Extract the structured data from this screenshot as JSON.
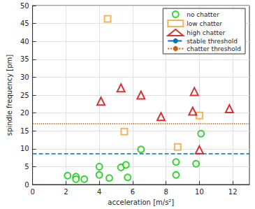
{
  "chart_data": {
    "type": "scatter",
    "x_label": "acceleration [m/s²]",
    "y_label": "spindle frequency [pm]",
    "xlim": [
      0,
      13
    ],
    "xticks": [
      0,
      2,
      4,
      6,
      8,
      10,
      12
    ],
    "ylim": [
      0,
      50
    ],
    "yticks": [
      0,
      5,
      10,
      15,
      20,
      25,
      30,
      35,
      40,
      45,
      50
    ],
    "grid": true,
    "legend": "top-right",
    "series": [
      {
        "name": "no chatter",
        "type": "scatter",
        "marker": "circle",
        "color": "#00cc00",
        "x": [
          2.1,
          2.6,
          2.6,
          3.1,
          4.0,
          4.0,
          4.6,
          5.3,
          5.6,
          5.7,
          6.5,
          8.6,
          8.6,
          9.8,
          10.1
        ],
        "values": [
          2.5,
          2.2,
          1.5,
          1.5,
          5.0,
          2.7,
          1.8,
          4.8,
          5.5,
          2.0,
          9.8,
          6.3,
          2.7,
          5.8,
          14.2
        ]
      },
      {
        "name": "low chatter",
        "type": "scatter",
        "marker": "square",
        "color": "#f0a030",
        "x": [
          4.5,
          5.5,
          8.7,
          10.0
        ],
        "values": [
          46.3,
          14.8,
          10.5,
          19.3
        ]
      },
      {
        "name": "high chatter",
        "type": "scatter",
        "marker": "triangle",
        "color": "#cc0000",
        "x": [
          4.1,
          5.3,
          6.5,
          7.7,
          9.6,
          9.7,
          10.0,
          11.8
        ],
        "values": [
          23.3,
          27.0,
          25.0,
          19.0,
          20.5,
          26.0,
          9.7,
          21.2
        ]
      },
      {
        "name": "stable threshold",
        "type": "line",
        "line_style": "dashed",
        "color": "#0072bd",
        "x": [
          0,
          13
        ],
        "values": [
          8.6,
          8.6
        ]
      },
      {
        "name": "chatter threshold",
        "type": "line",
        "line_style": "dotted",
        "color": "#c0601a",
        "x": [
          0,
          13
        ],
        "values": [
          17.0,
          17.0
        ]
      }
    ]
  }
}
